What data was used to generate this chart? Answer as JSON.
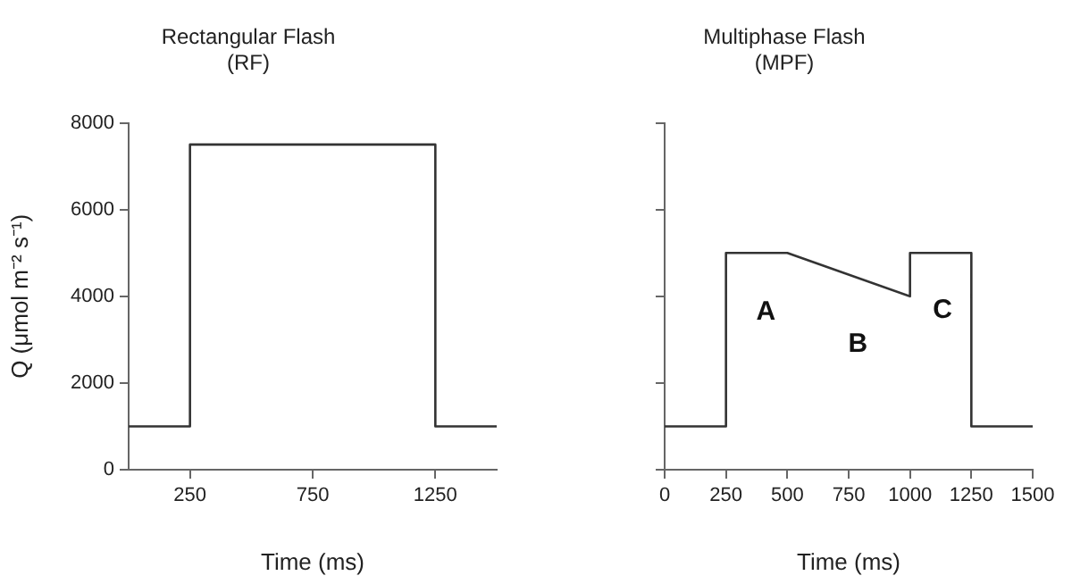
{
  "chart_data": [
    {
      "type": "line",
      "title": "Rectangular Flash",
      "subtitle": "(RF)",
      "xlabel": "Time (ms)",
      "ylabel": "Q (μmol m⁻² s⁻¹)",
      "x": [
        0,
        250,
        250,
        1250,
        1250,
        1500
      ],
      "series": [
        {
          "color": "#333333",
          "values": [
            1000,
            1000,
            7500,
            7500,
            1000,
            1000
          ]
        }
      ],
      "xlim": [
        0,
        1500
      ],
      "xticks": [
        250,
        750,
        1250
      ],
      "ylim": [
        0,
        8000
      ],
      "yticks": [
        0,
        2000,
        4000,
        6000,
        8000
      ],
      "marker": "none",
      "line_style": "solid"
    },
    {
      "type": "line",
      "title": "Multiphase Flash",
      "subtitle": "(MPF)",
      "xlabel": "Time (ms)",
      "x": [
        0,
        250,
        250,
        500,
        1000,
        1000,
        1250,
        1250,
        1500
      ],
      "series": [
        {
          "color": "#333333",
          "values": [
            1000,
            1000,
            5000,
            5000,
            4000,
            5000,
            5000,
            1000,
            1000
          ]
        }
      ],
      "xlim": [
        0,
        1500
      ],
      "xticks": [
        0,
        250,
        500,
        750,
        1000,
        1250,
        1500
      ],
      "ylim": [
        0,
        8000
      ],
      "yticks": [
        {
          "value": 0,
          "label": null
        },
        {
          "value": 2000,
          "label": null
        },
        {
          "value": 4000,
          "label": null
        },
        {
          "value": 6000,
          "label": null
        },
        {
          "value": 8000,
          "label": null
        }
      ],
      "tick_labels": "x",
      "marker": "none",
      "line_style": "solid",
      "annotations": [
        "A",
        "B",
        "C"
      ]
    }
  ]
}
